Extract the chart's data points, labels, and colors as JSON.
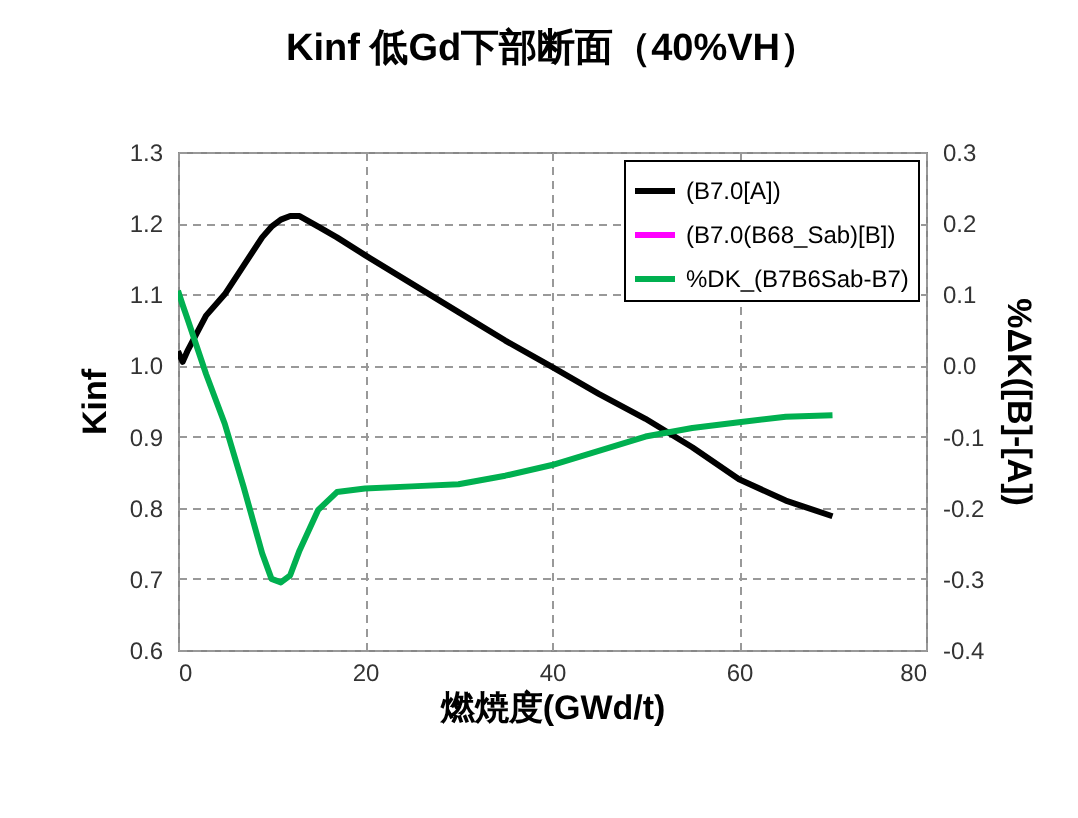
{
  "chart_data": {
    "type": "line",
    "title": "Kinf 低Gd下部断面（40%VH）",
    "xlabel": "燃焼度(GWd/t)",
    "ylabel": "Kinf",
    "y2label": "%ΔK([B]-[A])",
    "x": [
      0,
      0.5,
      1,
      3,
      5,
      7,
      9,
      10,
      11,
      12,
      13,
      15,
      17,
      20,
      25,
      30,
      35,
      40,
      45,
      50,
      55,
      60,
      65,
      70
    ],
    "series": [
      {
        "name": "(B7.0[A])",
        "color": "#000000",
        "values": [
          1.02,
          1.005,
          1.02,
          1.07,
          1.1,
          1.14,
          1.18,
          1.195,
          1.205,
          1.21,
          1.21,
          1.195,
          1.18,
          1.155,
          1.115,
          1.075,
          1.035,
          0.998,
          0.96,
          0.925,
          0.885,
          0.84,
          0.81,
          0.788
        ]
      },
      {
        "name": "(B7.0(B68_Sab)[B])",
        "color": "#ff00ff",
        "values": [
          null,
          null,
          null,
          null,
          null,
          null,
          null,
          null,
          null,
          null,
          null,
          null,
          null,
          null,
          null,
          null,
          null,
          null,
          null,
          null,
          null,
          null,
          null,
          null
        ]
      },
      {
        "name": "%DK_(B7B6Sab-B7)",
        "color": "#00b050",
        "axis": "y2",
        "values": [
          0.105,
          0.085,
          0.066,
          -0.012,
          -0.082,
          -0.17,
          -0.264,
          -0.3,
          -0.305,
          -0.295,
          -0.26,
          -0.203,
          -0.178,
          -0.173,
          -0.17,
          -0.167,
          -0.155,
          -0.14,
          -0.12,
          -0.1,
          -0.088,
          -0.08,
          -0.072,
          -0.07
        ]
      }
    ],
    "xlim": [
      0,
      80
    ],
    "xticks": [
      0,
      20,
      40,
      60,
      80
    ],
    "ylim": [
      0.6,
      1.3
    ],
    "yticks": [
      {
        "value": 0.6,
        "label": "0.6"
      },
      {
        "value": 0.7,
        "label": "0.7"
      },
      {
        "value": 0.8,
        "label": "0.8"
      },
      {
        "value": 0.9,
        "label": "0.9"
      },
      {
        "value": 1.0,
        "label": "1.0"
      },
      {
        "value": 1.1,
        "label": "1.1"
      },
      {
        "value": 1.2,
        "label": "1.2"
      },
      {
        "value": 1.3,
        "label": "1.3"
      }
    ],
    "y2lim": [
      -0.4,
      0.3
    ],
    "y2ticks": [
      {
        "value": -0.4,
        "label": "-0.4"
      },
      {
        "value": -0.3,
        "label": "-0.3"
      },
      {
        "value": -0.2,
        "label": "-0.2"
      },
      {
        "value": -0.1,
        "label": "-0.1"
      },
      {
        "value": 0,
        "label": "0.0"
      },
      {
        "value": 0.1,
        "label": "0.1"
      },
      {
        "value": 0.2,
        "label": "0.2"
      },
      {
        "value": 0.3,
        "label": "0.3"
      }
    ],
    "grid": true,
    "legend": "top right"
  }
}
